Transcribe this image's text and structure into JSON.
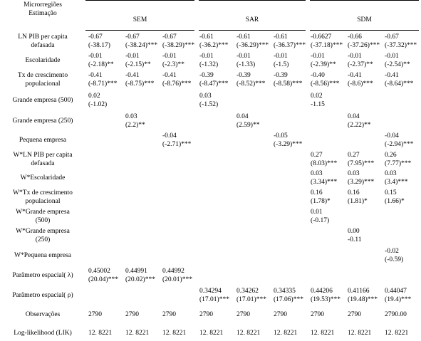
{
  "header": {
    "row_labels": [
      "Microrregiões",
      "Estimação"
    ],
    "groups": [
      "SEM",
      "SAR",
      "SDM"
    ]
  },
  "table": {
    "rows": [
      {
        "label": [
          "LN PIB per capita",
          "defasada"
        ],
        "cells": [
          [
            "-0.67",
            "(-38.17)"
          ],
          [
            "-0.67",
            "(-38.24)***"
          ],
          [
            "-0.67",
            "(-38.29)***"
          ],
          [
            "-0.61",
            "(-36.2)***"
          ],
          [
            "-0.61",
            "(-36.29)***"
          ],
          [
            "-0.61",
            "(-36.37)***"
          ],
          [
            "-0.6627",
            "(-37.18)***"
          ],
          [
            "-0.66",
            "(-37.26)***"
          ],
          [
            "-0.67",
            "(-37.32)***"
          ]
        ]
      },
      {
        "label": [
          "Escolaridade"
        ],
        "cells": [
          [
            "-0.01",
            "(-2.18)**"
          ],
          [
            "-0.01",
            "(-2.15)**"
          ],
          [
            "-0.01",
            "(-2.3)**"
          ],
          [
            "-0.01",
            "(-1.32)"
          ],
          [
            "-0.01",
            "(-1.33)"
          ],
          [
            "-0.01",
            "(-1.5)"
          ],
          [
            "-0.01",
            "(-2.39)**"
          ],
          [
            "-0.01",
            "(-2.37)**"
          ],
          [
            "-0.01",
            "(-2.54)**"
          ]
        ]
      },
      {
        "label": [
          "Tx de crescimento",
          "populacional"
        ],
        "cells": [
          [
            "-0.41",
            "(-8.71)***"
          ],
          [
            "-0.41",
            "(-8.75)***"
          ],
          [
            "-0.41",
            "(-8.76)***"
          ],
          [
            "-0.39",
            "(-8.47)***"
          ],
          [
            "-0.39",
            "(-8.52)***"
          ],
          [
            "-0.39",
            "(-8.58)***"
          ],
          [
            "-0.40",
            "(-8.56)***"
          ],
          [
            "-0.41",
            "(-8.6)***"
          ],
          [
            "-0.41",
            "(-8.64)***"
          ]
        ]
      },
      {
        "label": [
          "Grande empresa (500)"
        ],
        "cells": [
          [
            "0.02",
            "(-1.02)"
          ],
          null,
          null,
          [
            "0.03",
            "(-1.52)"
          ],
          null,
          null,
          [
            "0.02",
            "-1.15"
          ],
          null,
          null
        ]
      },
      {
        "label": [
          "Grande empresa (250)"
        ],
        "cells": [
          null,
          [
            "0.03",
            "(2.2)**"
          ],
          null,
          null,
          [
            "0.04",
            "(2.59)**"
          ],
          null,
          null,
          [
            "0.04",
            "(2.22)**"
          ],
          null
        ]
      },
      {
        "label": [
          "Pequena empresa"
        ],
        "cells": [
          null,
          null,
          [
            "-0.04",
            "(-2.71)***"
          ],
          null,
          null,
          [
            "-0.05",
            "(-3.29)***"
          ],
          null,
          null,
          [
            "-0.04",
            "(-2.94)***"
          ]
        ]
      },
      {
        "label": [
          "W*LN PIB per capita",
          "defasada"
        ],
        "cells": [
          null,
          null,
          null,
          null,
          null,
          null,
          [
            "0.27",
            "(8.03)***"
          ],
          [
            "0.27",
            "(7.95)***"
          ],
          [
            "0.26",
            "(7.77)***"
          ]
        ]
      },
      {
        "label": [
          "W*Escolaridade"
        ],
        "cells": [
          null,
          null,
          null,
          null,
          null,
          null,
          [
            "0.03",
            "(3.34)***"
          ],
          [
            "0.03",
            "(3.29)***"
          ],
          [
            "0.03",
            "(3.4)***"
          ]
        ]
      },
      {
        "label": [
          "W*Tx de crescimento",
          "populacional"
        ],
        "cells": [
          null,
          null,
          null,
          null,
          null,
          null,
          [
            "0.16",
            "(1.78)*"
          ],
          [
            "0.16",
            "(1.81)*"
          ],
          [
            "0.15",
            "(1.66)*"
          ]
        ]
      },
      {
        "label": [
          "W*Grande empresa",
          "(500)"
        ],
        "cells": [
          null,
          null,
          null,
          null,
          null,
          null,
          [
            "0.01",
            "(-0.17)"
          ],
          null,
          null
        ]
      },
      {
        "label": [
          "W*Grande empresa",
          "(250)"
        ],
        "cells": [
          null,
          null,
          null,
          null,
          null,
          null,
          null,
          [
            "0.00",
            "-0.11"
          ],
          null
        ]
      },
      {
        "label": [
          "W*Pequena empresa"
        ],
        "cells": [
          null,
          null,
          null,
          null,
          null,
          null,
          null,
          null,
          [
            "-0.02",
            "(-0.59)"
          ]
        ]
      },
      {
        "label": [
          "Parâmetro espacial( λ)"
        ],
        "cells": [
          [
            "0.45002",
            "(20.04)***"
          ],
          [
            "0.44991",
            "(20.02)***"
          ],
          [
            "0.44992",
            "(20.01)***"
          ],
          null,
          null,
          null,
          null,
          null,
          null
        ]
      },
      {
        "label": [
          "Parâmetro espacial( ρ)"
        ],
        "cells": [
          null,
          null,
          null,
          [
            "0.34294",
            "(17.01)***"
          ],
          [
            "0.34262",
            "(17.01)***"
          ],
          [
            "0.34335",
            "(17.06)***"
          ],
          [
            "0.44206",
            "(19.53)***"
          ],
          [
            "0.41166",
            "(19.48)***"
          ],
          [
            "0.44047",
            "(19.4)***"
          ]
        ]
      },
      {
        "label": [
          "Observações"
        ],
        "cells": [
          [
            "2790"
          ],
          [
            "2790"
          ],
          [
            "2790"
          ],
          [
            "2790"
          ],
          [
            "2790"
          ],
          [
            "2790"
          ],
          [
            "2790"
          ],
          [
            "2790"
          ],
          [
            "2790.00"
          ]
        ]
      },
      {
        "label": [
          "Log-likelihood (LIK)"
        ],
        "cells": [
          [
            "12. 8221"
          ],
          [
            "12. 8221"
          ],
          [
            "12. 8221"
          ],
          [
            "12. 8221"
          ],
          [
            "12. 8221"
          ],
          [
            "12. 8221"
          ],
          [
            "12. 8221"
          ],
          [
            "12. 8221"
          ],
          [
            "12. 8221"
          ]
        ]
      }
    ]
  }
}
